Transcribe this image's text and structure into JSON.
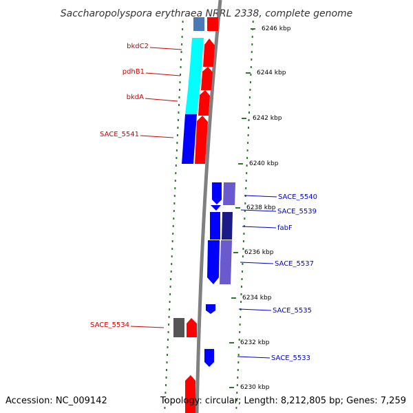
{
  "title": "Saccharopolyspora erythraea NRRL 2338, complete genome",
  "footer": {
    "accession": "Accession: NC_009142",
    "topology": "Topology: circular; Length: 8,212,805 bp; Genes: 7,259"
  },
  "colors": {
    "reverse_label": "#cc0000",
    "forward_label": "#0000cc",
    "tick": "#2a7a2a",
    "backbone": "#808080"
  },
  "ticks": [
    {
      "label": "6246 kbp"
    },
    {
      "label": "6244 kbp"
    },
    {
      "label": "6242 kbp"
    },
    {
      "label": "6240 kbp"
    },
    {
      "label": "6238 kbp"
    },
    {
      "label": "6236 kbp"
    },
    {
      "label": "6234 kbp"
    },
    {
      "label": "6232 kbp"
    },
    {
      "label": "6230 kbp"
    }
  ],
  "left_labels": [
    {
      "text": "bkdC2"
    },
    {
      "text": "pdhB1"
    },
    {
      "text": "bkdA"
    },
    {
      "text": "SACE_5541"
    },
    {
      "text": "SACE_5534"
    }
  ],
  "right_labels": [
    {
      "text": "SACE_5540"
    },
    {
      "text": "SACE_5539"
    },
    {
      "text": "fabF"
    },
    {
      "text": "SACE_5537"
    },
    {
      "text": "SACE_5535"
    },
    {
      "text": "SACE_5533"
    }
  ]
}
